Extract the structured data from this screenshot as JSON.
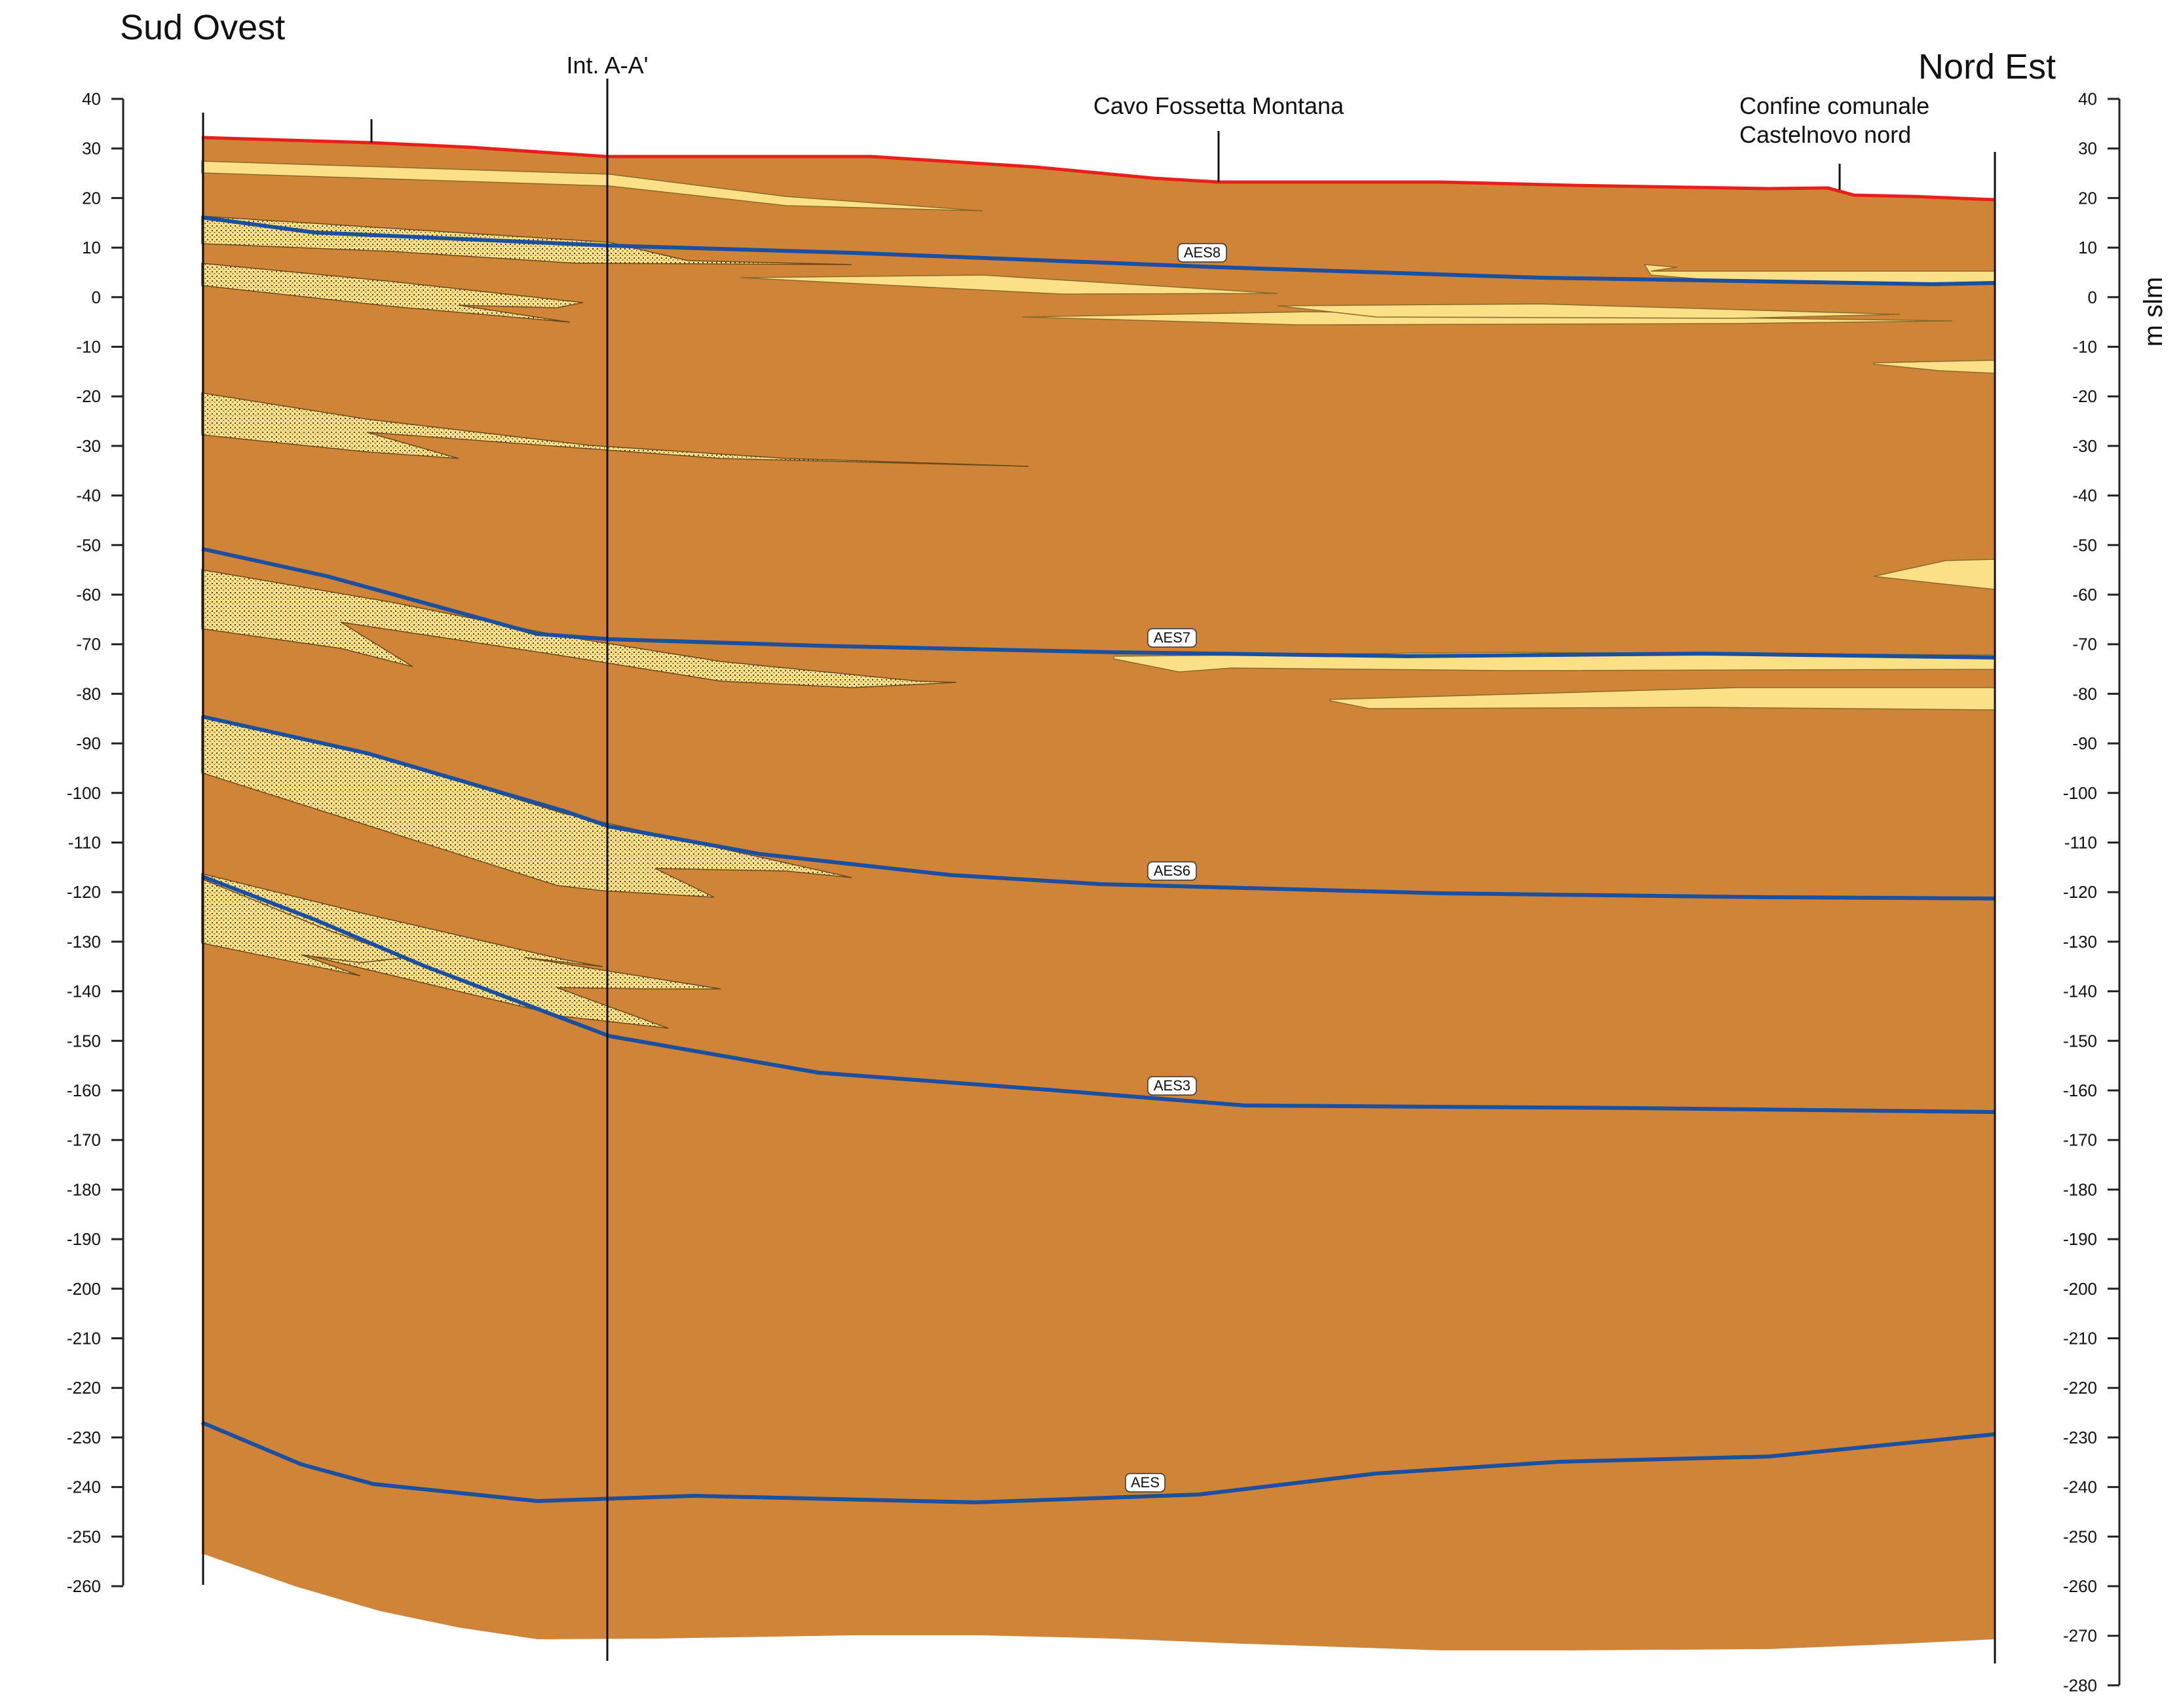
{
  "titles": {
    "left": "Sud Ovest",
    "right": "Nord Est",
    "axis_unit": "m slm"
  },
  "annotations": [
    {
      "key": "int",
      "text": "Int. A-A'"
    },
    {
      "key": "cavo",
      "text": "Cavo Fossetta Montana"
    },
    {
      "key": "confine1",
      "text": "Confine comunale"
    },
    {
      "key": "confine2",
      "text": "Castelnovo nord"
    }
  ],
  "axis": {
    "left_ticks": [
      40,
      30,
      20,
      10,
      0,
      -10,
      -20,
      -30,
      -40,
      -50,
      -60,
      -70,
      -80,
      -90,
      -100,
      -110,
      -120,
      -130,
      -140,
      -150,
      -160,
      -170,
      -180,
      -190,
      -200,
      -210,
      -220,
      -230,
      -240,
      -250,
      -260
    ],
    "right_ticks": [
      40,
      30,
      20,
      10,
      0,
      -10,
      -20,
      -30,
      -40,
      -50,
      -60,
      -70,
      -80,
      -90,
      -100,
      -110,
      -120,
      -130,
      -140,
      -150,
      -160,
      -170,
      -180,
      -190,
      -200,
      -210,
      -220,
      -230,
      -240,
      -250,
      -260,
      -270,
      -280
    ],
    "ylim": [
      -280,
      40
    ]
  },
  "surfaces": [
    {
      "name": "AES8",
      "label": "AES8"
    },
    {
      "name": "AES7",
      "label": "AES7"
    },
    {
      "name": "AES6",
      "label": "AES6"
    },
    {
      "name": "AES3",
      "label": "AES3"
    },
    {
      "name": "AES",
      "label": "AES"
    }
  ],
  "colors": {
    "fine_deposits": "#D08438",
    "sand_bodies": "#FBE088",
    "topographic_surface": "#E8201C",
    "stratigraphic_boundary": "#1B4FA0",
    "axis": "#222222"
  }
}
